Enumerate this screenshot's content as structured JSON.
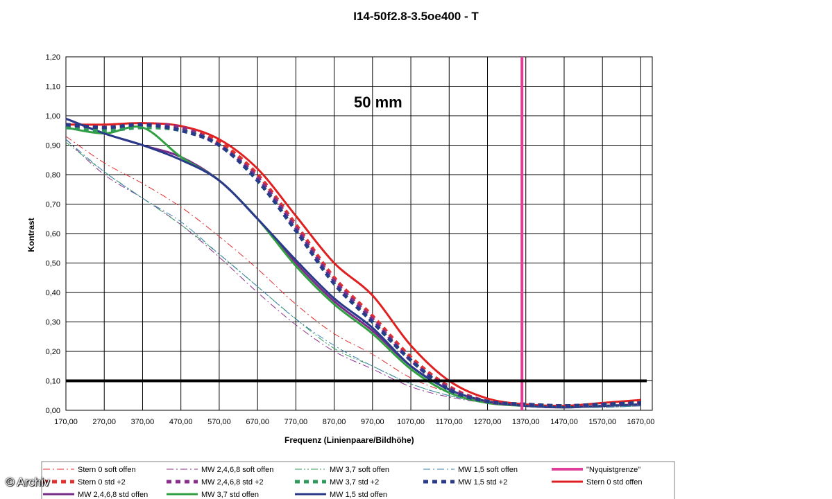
{
  "chart_data": {
    "type": "line",
    "title": "I14-50f2.8-3.5oe400 - T",
    "annotation": "50 mm",
    "xlabel": "Frequenz (Linienpaare/Bildhöhe)",
    "ylabel": "Kontrast",
    "xlim": [
      170,
      1700
    ],
    "ylim": [
      0,
      1.2
    ],
    "x_ticks": [
      "170,00",
      "270,00",
      "370,00",
      "470,00",
      "570,00",
      "670,00",
      "770,00",
      "870,00",
      "970,00",
      "1070,00",
      "1170,00",
      "1270,00",
      "1370,00",
      "1470,00",
      "1570,00",
      "1670,00"
    ],
    "y_ticks": [
      "0,00",
      "0,10",
      "0,20",
      "0,30",
      "0,40",
      "0,50",
      "0,60",
      "0,70",
      "0,80",
      "0,90",
      "1,00",
      "1,10",
      "1,20"
    ],
    "grid": true,
    "legend_position": "bottom",
    "reference_lines": [
      {
        "name": "\"Nyquistgrenze\"",
        "orientation": "vertical",
        "x": 1360,
        "color": "#e0409a"
      },
      {
        "orientation": "horizontal",
        "y": 0.1,
        "color": "#000000"
      }
    ],
    "series": [
      {
        "name": "Stern 0 soft offen",
        "color": "#e03030",
        "style": "dashdot",
        "width": 1,
        "x": [
          170,
          270,
          370,
          470,
          570,
          670,
          770,
          870,
          970,
          1070,
          1170,
          1270,
          1370,
          1470,
          1570,
          1670
        ],
        "y": [
          0.93,
          0.84,
          0.77,
          0.69,
          0.59,
          0.48,
          0.36,
          0.26,
          0.19,
          0.11,
          0.06,
          0.03,
          0.015,
          0.012,
          0.015,
          0.02
        ]
      },
      {
        "name": "MW 2,4,6,8 soft offen",
        "color": "#8a2d8a",
        "style": "dashdot",
        "width": 1,
        "x": [
          170,
          270,
          370,
          470,
          570,
          670,
          770,
          870,
          970,
          1070,
          1170,
          1270,
          1370,
          1470,
          1570,
          1670
        ],
        "y": [
          0.92,
          0.8,
          0.72,
          0.63,
          0.52,
          0.4,
          0.29,
          0.2,
          0.14,
          0.08,
          0.045,
          0.025,
          0.015,
          0.01,
          0.01,
          0.015
        ]
      },
      {
        "name": "MW 3,7 soft offen",
        "color": "#2f9a5a",
        "style": "dashdotdot",
        "width": 1,
        "x": [
          170,
          270,
          370,
          470,
          570,
          670,
          770,
          870,
          970,
          1070,
          1170,
          1270,
          1370,
          1470,
          1570,
          1670
        ],
        "y": [
          0.91,
          0.81,
          0.72,
          0.63,
          0.53,
          0.42,
          0.31,
          0.21,
          0.15,
          0.09,
          0.05,
          0.025,
          0.015,
          0.01,
          0.01,
          0.015
        ]
      },
      {
        "name": "MW 1,5 soft offen",
        "color": "#3a80b0",
        "style": "dashdot",
        "width": 1,
        "x": [
          170,
          270,
          370,
          470,
          570,
          670,
          770,
          870,
          970,
          1070,
          1170,
          1270,
          1370,
          1470,
          1570,
          1670
        ],
        "y": [
          0.92,
          0.81,
          0.72,
          0.64,
          0.53,
          0.42,
          0.31,
          0.22,
          0.15,
          0.09,
          0.05,
          0.025,
          0.015,
          0.01,
          0.01,
          0.015
        ]
      },
      {
        "name": "\"Nyquistgrenze\"",
        "color": "#e0409a",
        "style": "solid",
        "width": 4,
        "x": [],
        "y": []
      },
      {
        "name": "Stern 0 std +2",
        "color": "#e03030",
        "style": "dash",
        "width": 5,
        "x": [
          170,
          270,
          370,
          470,
          570,
          670,
          770,
          870,
          970,
          1070,
          1170,
          1270,
          1370,
          1470,
          1570,
          1670
        ],
        "y": [
          0.97,
          0.96,
          0.97,
          0.96,
          0.91,
          0.8,
          0.63,
          0.45,
          0.32,
          0.18,
          0.08,
          0.03,
          0.02,
          0.015,
          0.02,
          0.025
        ]
      },
      {
        "name": "MW 2,4,6,8 std +2",
        "color": "#8a2d8a",
        "style": "dash",
        "width": 5,
        "x": [
          170,
          270,
          370,
          470,
          570,
          670,
          770,
          870,
          970,
          1070,
          1170,
          1270,
          1370,
          1470,
          1570,
          1670
        ],
        "y": [
          0.97,
          0.96,
          0.97,
          0.96,
          0.9,
          0.79,
          0.62,
          0.44,
          0.31,
          0.17,
          0.075,
          0.03,
          0.02,
          0.015,
          0.02,
          0.025
        ]
      },
      {
        "name": "MW 3,7 std +2",
        "color": "#2f9a5a",
        "style": "dash",
        "width": 5,
        "x": [
          170,
          270,
          370,
          470,
          570,
          670,
          770,
          870,
          970,
          1070,
          1170,
          1270,
          1370,
          1470,
          1570,
          1670
        ],
        "y": [
          0.96,
          0.95,
          0.96,
          0.95,
          0.9,
          0.78,
          0.61,
          0.43,
          0.3,
          0.17,
          0.07,
          0.03,
          0.02,
          0.015,
          0.02,
          0.025
        ]
      },
      {
        "name": "MW 1,5 std +2",
        "color": "#2a3a8a",
        "style": "dash",
        "width": 5,
        "x": [
          170,
          270,
          370,
          470,
          570,
          670,
          770,
          870,
          970,
          1070,
          1170,
          1270,
          1370,
          1470,
          1570,
          1670
        ],
        "y": [
          0.97,
          0.96,
          0.97,
          0.95,
          0.9,
          0.78,
          0.61,
          0.43,
          0.3,
          0.17,
          0.07,
          0.03,
          0.02,
          0.015,
          0.02,
          0.025
        ]
      },
      {
        "name": "Stern 0 std offen",
        "color": "#e02020",
        "style": "solid",
        "width": 3,
        "x": [
          170,
          270,
          370,
          470,
          570,
          670,
          770,
          870,
          970,
          1070,
          1170,
          1270,
          1370,
          1470,
          1570,
          1670
        ],
        "y": [
          0.97,
          0.97,
          0.975,
          0.965,
          0.92,
          0.82,
          0.66,
          0.5,
          0.39,
          0.22,
          0.1,
          0.04,
          0.02,
          0.015,
          0.025,
          0.035
        ]
      },
      {
        "name": "MW 2,4,6,8 std offen",
        "color": "#7a2a8a",
        "style": "solid",
        "width": 3,
        "x": [
          170,
          270,
          370,
          470,
          570,
          670,
          770,
          870,
          970,
          1070,
          1170,
          1270,
          1370,
          1470,
          1570,
          1670
        ],
        "y": [
          0.99,
          0.94,
          0.9,
          0.86,
          0.78,
          0.65,
          0.5,
          0.37,
          0.27,
          0.15,
          0.07,
          0.03,
          0.015,
          0.01,
          0.015,
          0.02
        ]
      },
      {
        "name": "MW 3,7 std offen",
        "color": "#30a040",
        "style": "solid",
        "width": 3,
        "x": [
          170,
          270,
          370,
          470,
          570,
          670,
          770,
          870,
          970,
          1070,
          1170,
          1270,
          1370,
          1470,
          1570,
          1670
        ],
        "y": [
          0.96,
          0.94,
          0.96,
          0.86,
          0.78,
          0.65,
          0.49,
          0.36,
          0.26,
          0.14,
          0.06,
          0.025,
          0.015,
          0.01,
          0.015,
          0.02
        ]
      },
      {
        "name": "MW 1,5 std offen",
        "color": "#2a3a8a",
        "style": "solid",
        "width": 3,
        "x": [
          170,
          270,
          370,
          470,
          570,
          670,
          770,
          870,
          970,
          1070,
          1170,
          1270,
          1370,
          1470,
          1570,
          1670
        ],
        "y": [
          0.99,
          0.94,
          0.9,
          0.85,
          0.78,
          0.65,
          0.51,
          0.38,
          0.28,
          0.15,
          0.07,
          0.03,
          0.015,
          0.01,
          0.015,
          0.02
        ]
      }
    ]
  },
  "watermark": "© Archiv"
}
